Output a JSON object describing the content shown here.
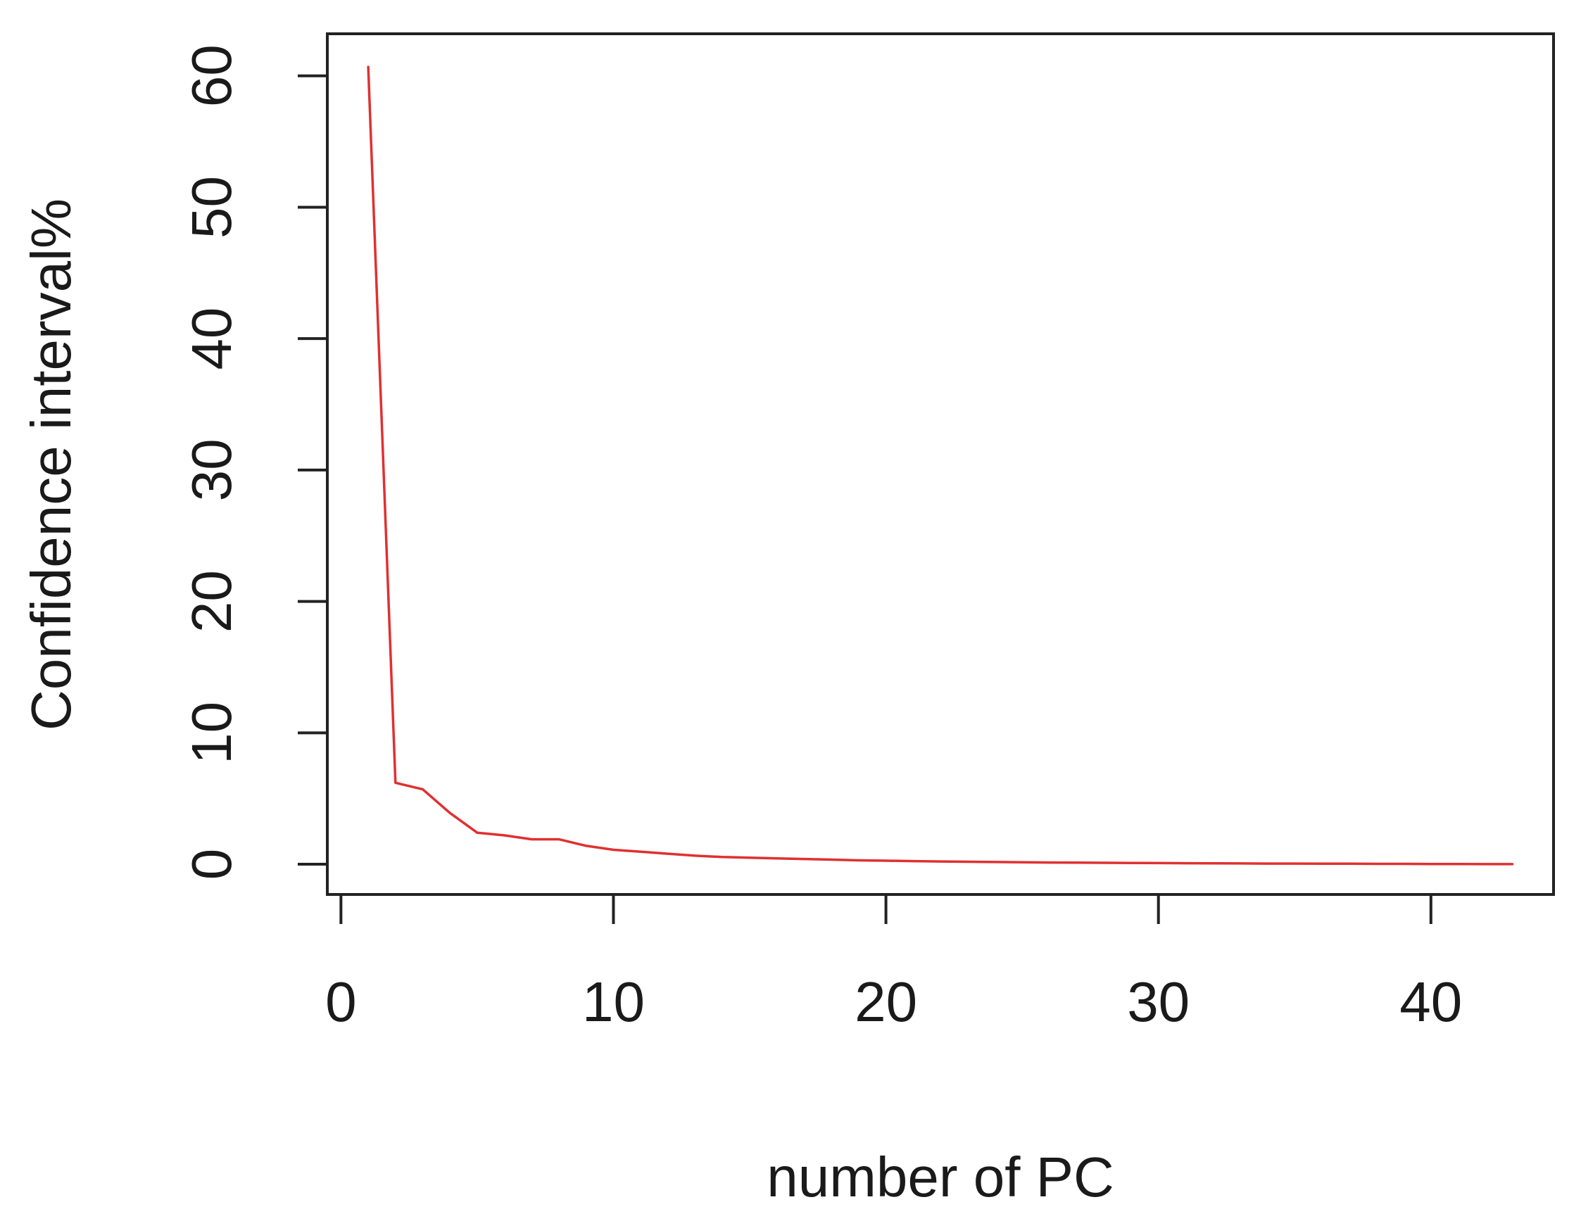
{
  "chart_data": {
    "type": "line",
    "title": "",
    "xlabel": "number of PC",
    "ylabel": "Confidence interval%",
    "xlim": [
      -0.5,
      44.5
    ],
    "ylim": [
      -2.3,
      63.2
    ],
    "x_ticks": [
      0,
      10,
      20,
      30,
      40
    ],
    "y_ticks": [
      0,
      10,
      20,
      30,
      40,
      50,
      60
    ],
    "grid": false,
    "legend": "none",
    "series": [
      {
        "color": "#e03030",
        "x": [
          1,
          2,
          3,
          4,
          5,
          6,
          7,
          8,
          9,
          10,
          11,
          12,
          13,
          14,
          15,
          16,
          17,
          18,
          19,
          20,
          21,
          22,
          23,
          24,
          25,
          26,
          27,
          28,
          29,
          30,
          31,
          32,
          33,
          34,
          35,
          36,
          37,
          38,
          39,
          40,
          41,
          42,
          43
        ],
        "y": [
          60.7,
          6.2,
          5.7,
          3.9,
          2.4,
          2.2,
          1.9,
          1.9,
          1.4,
          1.1,
          0.95,
          0.8,
          0.65,
          0.55,
          0.5,
          0.45,
          0.4,
          0.35,
          0.3,
          0.27,
          0.24,
          0.21,
          0.19,
          0.17,
          0.15,
          0.13,
          0.12,
          0.11,
          0.1,
          0.09,
          0.08,
          0.07,
          0.06,
          0.05,
          0.05,
          0.04,
          0.04,
          0.03,
          0.03,
          0.02,
          0.02,
          0.01,
          0.01
        ]
      }
    ]
  }
}
